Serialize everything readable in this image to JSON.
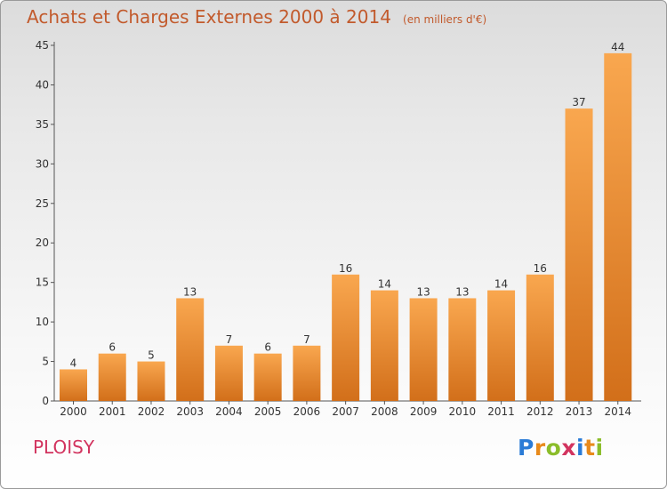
{
  "title": "Achats et Charges Externes 2000 à 2014",
  "unit_note": "(en milliers d'€)",
  "city": "PLOISY",
  "brand": {
    "letters": [
      "P",
      "r",
      "o",
      "x",
      "i",
      "t",
      "i"
    ],
    "colors": [
      "#2a7bd6",
      "#e88a1b",
      "#8bbd2a",
      "#d2345f",
      "#2a7bd6",
      "#e88a1b",
      "#8bbd2a"
    ]
  },
  "colors": {
    "bar_light": "#f9a74f",
    "bar_dark": "#d26f1a",
    "title": "#c25a2c",
    "city": "#d2345f"
  },
  "chart_data": {
    "type": "bar",
    "title": "Achats et Charges Externes 2000 à 2014",
    "subtitle": "(en milliers d'€)",
    "categories": [
      "2000",
      "2001",
      "2002",
      "2003",
      "2004",
      "2005",
      "2006",
      "2007",
      "2008",
      "2009",
      "2010",
      "2011",
      "2012",
      "2013",
      "2014"
    ],
    "values": [
      4,
      6,
      5,
      13,
      7,
      6,
      7,
      16,
      14,
      13,
      13,
      14,
      16,
      37,
      44
    ],
    "yticks": [
      0,
      5,
      10,
      15,
      20,
      25,
      30,
      35,
      40,
      45
    ],
    "ylim": [
      0,
      45
    ],
    "grid": false,
    "legend": "none"
  }
}
